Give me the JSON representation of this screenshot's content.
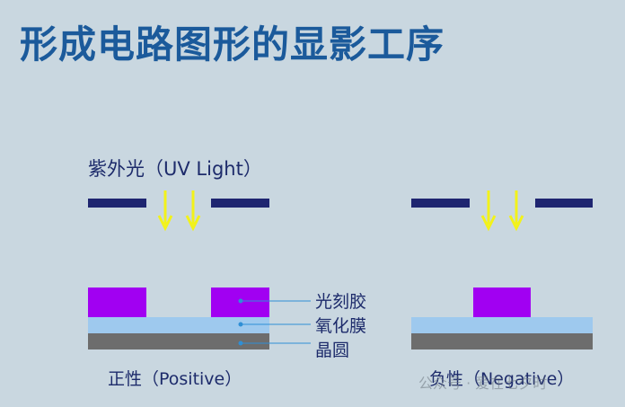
{
  "title": "形成电路图形的显影工序",
  "uv_label": "紫外光（UV Light）",
  "layers": {
    "photoresist": "光刻胶",
    "oxide": "氧化膜",
    "wafer": "晶圆"
  },
  "captions": {
    "positive": "正性（Positive）",
    "negative": "负性（Negative）"
  },
  "colors": {
    "background": "#c9d7e0",
    "title": "#1b5a9b",
    "mask": "#1e2570",
    "photoresist": "#a100f2",
    "oxide": "#9ec9ee",
    "wafer": "#6d6d6d",
    "uv_arrow": "#f2f21a"
  },
  "watermark": "公众号 · 爱在七夕时"
}
